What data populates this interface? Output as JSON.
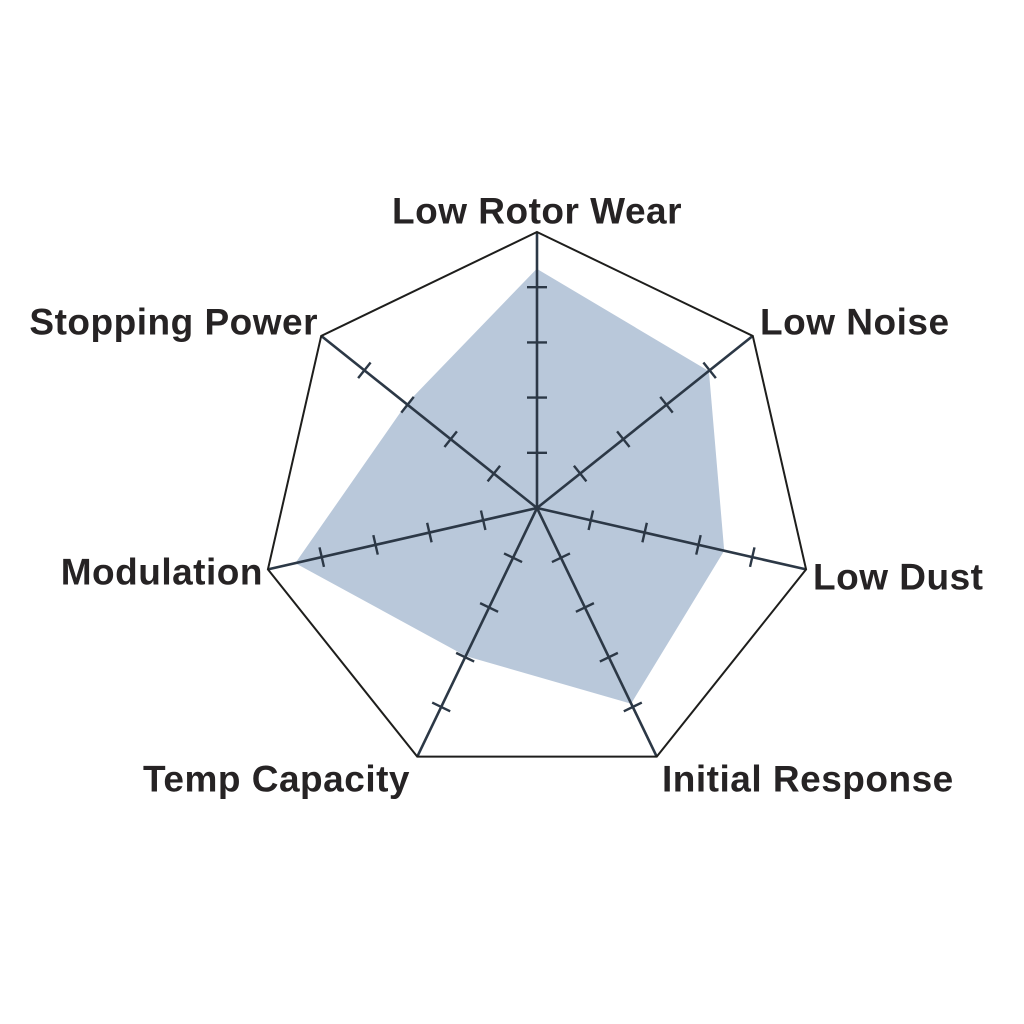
{
  "page": {
    "background_color": "#ffffff"
  },
  "chart_data": {
    "type": "radar",
    "categories": [
      "Low Rotor Wear",
      "Low Noise",
      "Low Dust",
      "Initial Response",
      "Temp Capacity",
      "Modulation",
      "Stopping Power"
    ],
    "values": [
      4.3,
      3.95,
      3.45,
      3.9,
      2.95,
      4.45,
      3.0
    ],
    "ylim": [
      0,
      5
    ],
    "tick_values": [
      1,
      2,
      3,
      4
    ],
    "title": "",
    "legend": "none",
    "grid": "radial spokes with tick dashes, heptagon outer boundary only",
    "fill_color": "#b9c8da",
    "spoke_color": "#2c3846",
    "outline_color": "#1e1e1c",
    "label_color": "#262324"
  }
}
